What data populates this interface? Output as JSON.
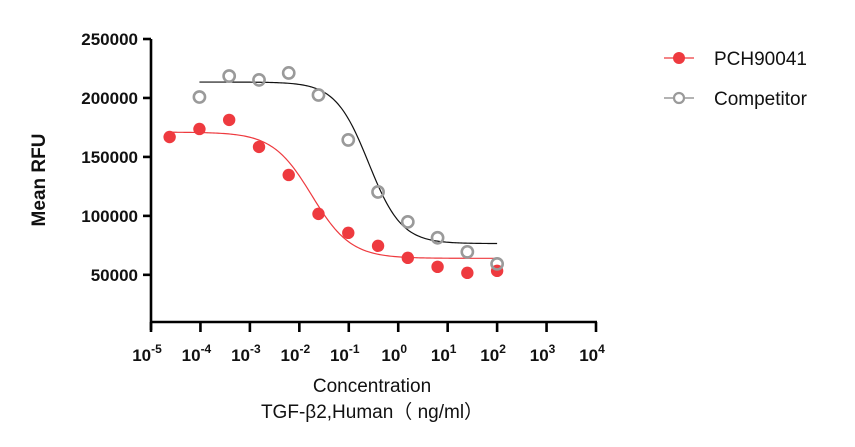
{
  "chart_data": {
    "type": "scatter",
    "title": "",
    "xlabel": "Concentration",
    "xlabel2": "TGF-β2,Human（ ng/ml）",
    "ylabel": "Mean RFU",
    "xscale": "log10",
    "xlim_exp": [
      -5,
      4
    ],
    "ylim": [
      10000,
      250000
    ],
    "x_ticks": [
      {
        "base": "10",
        "exp": "-5"
      },
      {
        "base": "10",
        "exp": "-4"
      },
      {
        "base": "10",
        "exp": "-3"
      },
      {
        "base": "10",
        "exp": "-2"
      },
      {
        "base": "10",
        "exp": "-1"
      },
      {
        "base": "10",
        "exp": "0"
      },
      {
        "base": "10",
        "exp": "1"
      },
      {
        "base": "10",
        "exp": "2"
      },
      {
        "base": "10",
        "exp": "3"
      },
      {
        "base": "10",
        "exp": "4"
      }
    ],
    "y_ticks": [
      "50000",
      "100000",
      "150000",
      "200000",
      "250000"
    ],
    "y_tick_values": [
      50000,
      100000,
      150000,
      200000,
      250000
    ],
    "legend_position": "top-right",
    "series": [
      {
        "name": "PCH90041",
        "color": "#ee3a3f",
        "marker": "filled-circle",
        "x": [
          2.38e-05,
          9.54e-05,
          0.000381,
          0.00153,
          0.0061,
          0.0244,
          0.0977,
          0.391,
          1.5625,
          6.25,
          25,
          100
        ],
        "y": [
          166900,
          173700,
          181400,
          158500,
          134700,
          101700,
          85600,
          74600,
          64400,
          56800,
          51700,
          53400
        ],
        "fit": {
          "top": 171000,
          "bottom": 64000,
          "log_ec50": -1.75,
          "hill": 1.1
        }
      },
      {
        "name": "Competitor",
        "color": "#9a9a9a",
        "fit_color": "#111111",
        "marker": "open-circle",
        "x": [
          9.54e-05,
          0.000381,
          0.00153,
          0.0061,
          0.0244,
          0.0977,
          0.391,
          1.5625,
          6.25,
          25,
          100
        ],
        "y": [
          200800,
          218600,
          215300,
          221200,
          202500,
          164400,
          120300,
          94900,
          81400,
          69500,
          59300
        ],
        "fit": {
          "top": 213500,
          "bottom": 76500,
          "log_ec50": -0.6,
          "hill": 1.3
        }
      }
    ]
  }
}
